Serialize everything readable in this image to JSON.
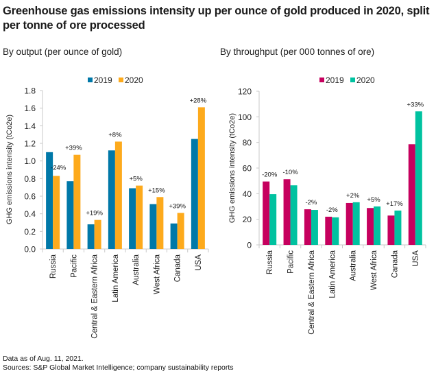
{
  "title": "Greenhouse gas emissions intensity up per ounce of gold produced in 2020, split per tonne of ore processed",
  "footer": {
    "note": "Data as of Aug. 11, 2021.",
    "sources": "Sources: S&P Global Market Intelligence; company sustainability reports"
  },
  "chart_data": [
    {
      "type": "bar",
      "title": "By output (per ounce of gold)",
      "xlabel": "",
      "ylabel": "GHG emissions intensity (tCo2e)",
      "ylim": [
        0,
        1.8
      ],
      "yticks": [
        "0.0",
        "0.2",
        "0.4",
        "0.6",
        "0.8",
        "1.0",
        "1.2",
        "1.4",
        "1.6",
        "1.8"
      ],
      "tick_values": [
        0,
        0.2,
        0.4,
        0.6,
        0.8,
        1.0,
        1.2,
        1.4,
        1.6,
        1.8
      ],
      "grid": false,
      "legend_position": "top",
      "categories": [
        "Russia",
        "Pacific",
        "Central & Eastern Africa",
        "Latin America",
        "Australia",
        "West Africa",
        "Canada",
        "USA"
      ],
      "series": [
        {
          "name": "2019",
          "color": "#0078A8",
          "values": [
            1.1,
            0.77,
            0.28,
            1.12,
            0.69,
            0.51,
            0.29,
            1.25
          ]
        },
        {
          "name": "2020",
          "color": "#FDAA1C",
          "values": [
            0.83,
            1.07,
            0.33,
            1.22,
            0.72,
            0.59,
            0.41,
            1.61
          ]
        }
      ],
      "annotations": [
        "-24%",
        "+39%",
        "+19%",
        "+8%",
        "+5%",
        "+15%",
        "+39%",
        "+28%"
      ]
    },
    {
      "type": "bar",
      "title": "By throughput (per 000 tonnes of ore)",
      "xlabel": "",
      "ylabel": "GHG  emissions intensity (tCo2e)",
      "ylim": [
        0,
        120
      ],
      "yticks": [
        "0",
        "20",
        "40",
        "60",
        "80",
        "100",
        "120"
      ],
      "tick_values": [
        0,
        20,
        40,
        60,
        80,
        100,
        120
      ],
      "grid": false,
      "legend_position": "top",
      "categories": [
        "Russia",
        "Pacific",
        "Central & Eastern Africa",
        "Latin America",
        "Australia",
        "West Africa",
        "Canada",
        "USA"
      ],
      "series": [
        {
          "name": "2019",
          "color": "#C6005E",
          "values": [
            49.5,
            51.3,
            27.8,
            22.0,
            32.7,
            28.8,
            22.9,
            78.6
          ]
        },
        {
          "name": "2020",
          "color": "#00C2A0",
          "values": [
            39.6,
            46.5,
            27.3,
            21.5,
            33.3,
            30.0,
            26.8,
            104.3
          ]
        }
      ],
      "annotations": [
        "-20%",
        "-10%",
        "-2%",
        "-2%",
        "+2%",
        "+5%",
        "+17%",
        "+33%"
      ]
    }
  ]
}
